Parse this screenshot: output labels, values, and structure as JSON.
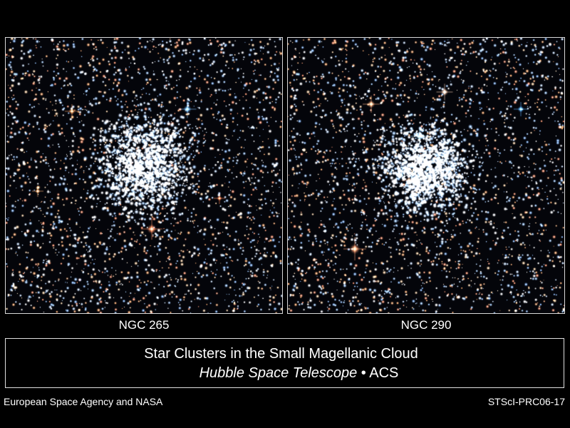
{
  "panels": [
    {
      "name": "NGC 265"
    },
    {
      "name": "NGC 290"
    }
  ],
  "caption": {
    "title": "Star Clusters in the Small Magellanic Cloud",
    "telescope": "Hubble Space Telescope",
    "separator": " • ",
    "instrument": "ACS"
  },
  "credits": {
    "left": "European Space Agency and NASA",
    "right": "STScI-PRC06-17"
  },
  "colors": {
    "background": "#000000",
    "text": "#ffffff",
    "star_blue": "#a8d0ff",
    "star_orange": "#ffb070"
  }
}
